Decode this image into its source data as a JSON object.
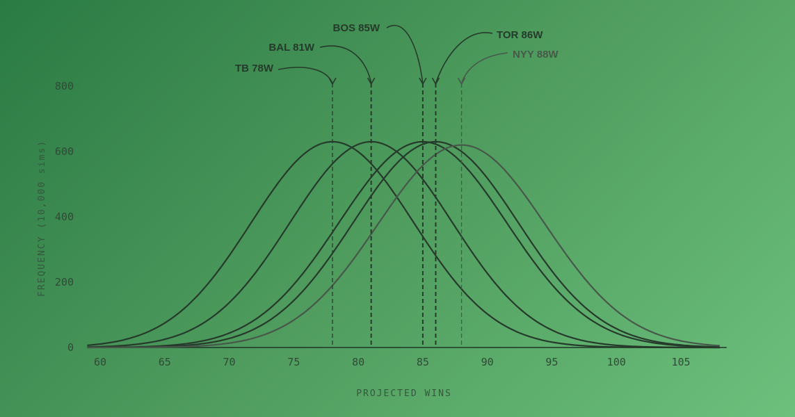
{
  "chart_data": {
    "type": "line",
    "title": "",
    "xlabel": "PROJECTED WINS",
    "ylabel": "FREQUENCY (10,000 sims)",
    "xlim": [
      59,
      108
    ],
    "ylim": [
      0,
      800
    ],
    "x_ticks": [
      60,
      65,
      70,
      75,
      80,
      85,
      90,
      95,
      100,
      105
    ],
    "x_tick_labels": [
      "60",
      "65",
      "70",
      "75",
      "80",
      "85",
      "90",
      "95",
      "100",
      "105"
    ],
    "y_ticks": [
      0,
      200,
      400,
      600,
      800
    ],
    "y_tick_labels": [
      "0",
      "200",
      "400",
      "600",
      "800"
    ],
    "grid": false,
    "series": [
      {
        "name": "TB",
        "label": "TB 78W",
        "mean": 78,
        "peak": 630,
        "sd": 6.3,
        "color": "#263a2b",
        "values": [
          [
            60,
            10
          ],
          [
            66,
            109
          ],
          [
            72,
            401
          ],
          [
            78,
            630
          ],
          [
            84,
            401
          ],
          [
            90,
            109
          ],
          [
            96,
            10
          ]
        ]
      },
      {
        "name": "BAL",
        "label": "BAL 81W",
        "mean": 81,
        "peak": 630,
        "sd": 6.3,
        "color": "#263a2b",
        "values": [
          [
            60,
            3
          ],
          [
            66,
            37
          ],
          [
            72,
            229
          ],
          [
            81,
            630
          ],
          [
            90,
            229
          ],
          [
            96,
            37
          ],
          [
            102,
            3
          ]
        ]
      },
      {
        "name": "BOS",
        "label": "BOS 85W",
        "mean": 85,
        "peak": 630,
        "sd": 6.5,
        "color": "#263a2b",
        "values": [
          [
            60,
            0
          ],
          [
            67,
            27
          ],
          [
            75,
            194
          ],
          [
            85,
            630
          ],
          [
            95,
            194
          ],
          [
            103,
            27
          ],
          [
            108,
            1
          ]
        ]
      },
      {
        "name": "TOR",
        "label": "TOR 86W",
        "mean": 86,
        "peak": 630,
        "sd": 6.4,
        "color": "#263a2b",
        "values": [
          [
            60,
            0
          ],
          [
            68,
            28
          ],
          [
            76,
            186
          ],
          [
            86,
            630
          ],
          [
            96,
            186
          ],
          [
            104,
            24
          ],
          [
            108,
            2
          ]
        ]
      },
      {
        "name": "NYY",
        "label": "NYY 88W",
        "mean": 88,
        "peak": 620,
        "sd": 6.5,
        "color": "#47584b",
        "values": [
          [
            60,
            0
          ],
          [
            70,
            13
          ],
          [
            78,
            190
          ],
          [
            88,
            620
          ],
          [
            98,
            190
          ],
          [
            106,
            13
          ],
          [
            108,
            5
          ]
        ]
      }
    ]
  }
}
